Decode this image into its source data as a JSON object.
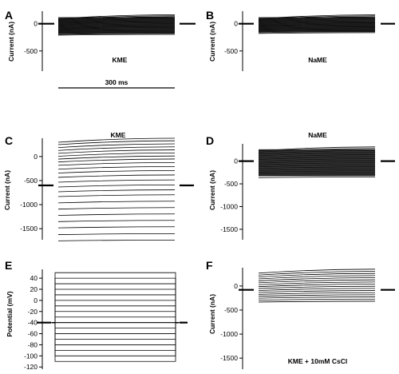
{
  "chart_data": [
    {
      "panel": "A",
      "type": "line",
      "ylabel": "Current (nA)",
      "yticks": [
        0,
        -500
      ],
      "ylim": [
        -870,
        230
      ],
      "annotation": "KME",
      "scalebar_label": "300 ms",
      "trace_levels": [
        -180,
        -165,
        -150,
        -135,
        -120,
        -105,
        -90,
        -75,
        -60,
        -45,
        -30,
        -15,
        0,
        15,
        30,
        45,
        60,
        75,
        90,
        105,
        120
      ],
      "holding_level": 0
    },
    {
      "panel": "B",
      "type": "line",
      "ylabel": "Current (nA)",
      "yticks": [
        0,
        -500
      ],
      "ylim": [
        -870,
        230
      ],
      "annotation": "NaME",
      "trace_levels": [
        -150,
        -135,
        -120,
        -105,
        -90,
        -75,
        -60,
        -45,
        -30,
        -15,
        0,
        15,
        30,
        45,
        60,
        75,
        90,
        105,
        120
      ],
      "holding_level": 0
    },
    {
      "panel": "C",
      "type": "line",
      "ylabel": "Current (nA)",
      "yticks": [
        0,
        -500,
        -1000,
        -1500
      ],
      "ylim": [
        -1730,
        380
      ],
      "annotation": "KME",
      "trace_levels": [
        -1720,
        -1590,
        -1450,
        -1320,
        -1190,
        -1060,
        -930,
        -800,
        -700,
        -600,
        -500,
        -400,
        -310,
        -230,
        -150,
        -80,
        -20,
        40,
        100,
        160,
        220,
        280,
        330
      ],
      "holding_level": -600
    },
    {
      "panel": "D",
      "type": "line",
      "ylabel": "Current (nA)",
      "yticks": [
        0,
        -500,
        -1000,
        -1500
      ],
      "ylim": [
        -1730,
        380
      ],
      "annotation": "NaME",
      "trace_levels": [
        -330,
        -290,
        -250,
        -210,
        -170,
        -130,
        -90,
        -50,
        -10,
        30,
        70,
        110,
        150,
        190,
        230,
        260
      ],
      "holding_level": 0
    },
    {
      "panel": "E",
      "type": "line",
      "ylabel": "Potential (mV)",
      "yticks": [
        40,
        20,
        0,
        -20,
        -40,
        -60,
        -80,
        -100,
        -120
      ],
      "ylim": [
        -124,
        56
      ],
      "step_levels": [
        -110,
        -100,
        -90,
        -80,
        -70,
        -60,
        -50,
        -40,
        -30,
        -20,
        -10,
        0,
        10,
        20,
        30,
        40,
        50
      ],
      "holding_level": -40
    },
    {
      "panel": "F",
      "type": "line",
      "ylabel": "Current (nA)",
      "yticks": [
        0,
        -500,
        -1000,
        -1500
      ],
      "ylim": [
        -1730,
        380
      ],
      "annotation": "KME + 10mM CsCl",
      "trace_levels": [
        -300,
        -260,
        -220,
        -180,
        -140,
        -100,
        -60,
        -20,
        20,
        60,
        100,
        140,
        180,
        220,
        260,
        300
      ],
      "holding_level": -80
    }
  ]
}
